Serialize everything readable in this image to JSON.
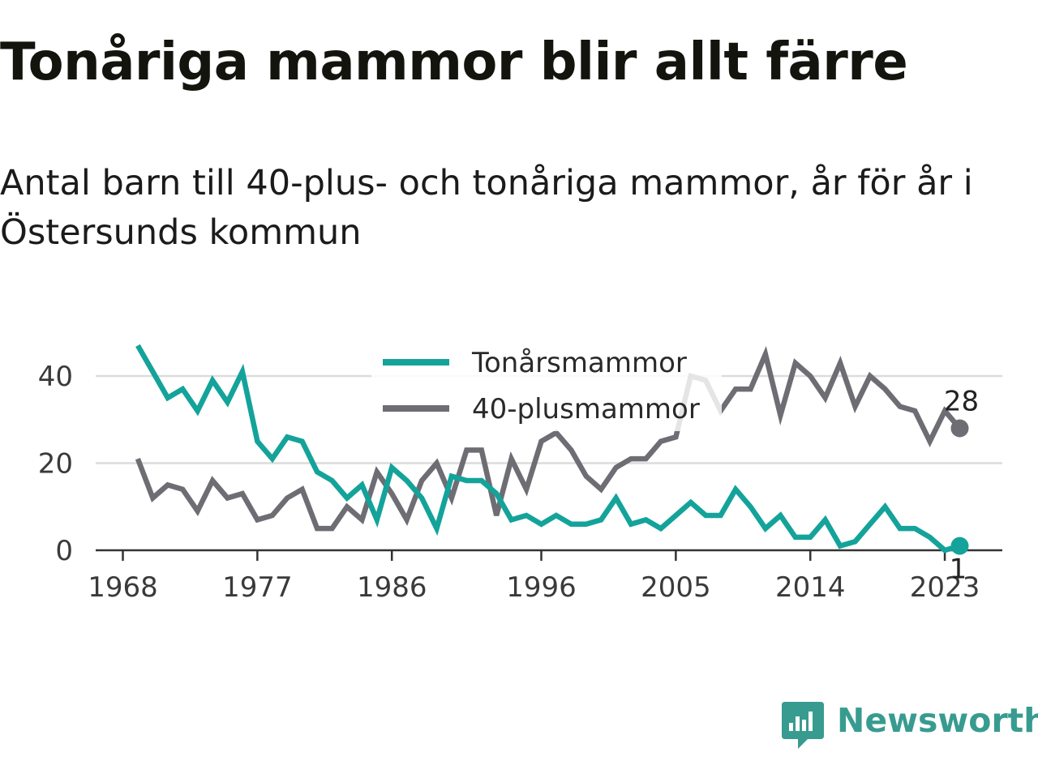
{
  "title": "Tonåriga mammor blir allt färre",
  "subtitle": "Antal barn till 40-plus- och tonåriga mammor, år för år i Östersunds kommun",
  "brand": {
    "name": "Newsworthy",
    "color": "#379c8f"
  },
  "chart_data": {
    "type": "line",
    "x": [
      1969,
      1970,
      1971,
      1972,
      1973,
      1974,
      1975,
      1976,
      1977,
      1978,
      1979,
      1980,
      1981,
      1982,
      1983,
      1984,
      1985,
      1986,
      1987,
      1988,
      1989,
      1990,
      1991,
      1992,
      1993,
      1994,
      1995,
      1996,
      1997,
      1998,
      1999,
      2000,
      2001,
      2002,
      2003,
      2004,
      2005,
      2006,
      2007,
      2008,
      2009,
      2010,
      2011,
      2012,
      2013,
      2014,
      2015,
      2016,
      2017,
      2018,
      2019,
      2020,
      2021,
      2022,
      2023,
      2024
    ],
    "xticks": [
      "1968",
      "1977",
      "1986",
      "1996",
      "2005",
      "2014",
      "2023"
    ],
    "yticks": [
      "0",
      "20",
      "40"
    ],
    "ylim": [
      0,
      50
    ],
    "grid": true,
    "legend_position": "top-center",
    "series": [
      {
        "name": "Tonårsmammor",
        "color": "#14a39a",
        "values": [
          47,
          41,
          35,
          37,
          32,
          39,
          34,
          41,
          25,
          21,
          26,
          25,
          18,
          16,
          12,
          15,
          7,
          19,
          16,
          12,
          5,
          17,
          16,
          16,
          13,
          7,
          8,
          6,
          8,
          6,
          6,
          7,
          12,
          6,
          7,
          5,
          8,
          11,
          8,
          8,
          14,
          10,
          5,
          8,
          3,
          3,
          7,
          1,
          2,
          6,
          10,
          5,
          5,
          3,
          0,
          1
        ],
        "end_label": "1"
      },
      {
        "name": "40-plusmammor",
        "color": "#6e6d74",
        "values": [
          21,
          12,
          15,
          14,
          9,
          16,
          12,
          13,
          7,
          8,
          12,
          14,
          5,
          5,
          10,
          7,
          18,
          13,
          7,
          16,
          20,
          12,
          23,
          23,
          8,
          21,
          14,
          25,
          27,
          23,
          17,
          14,
          19,
          21,
          21,
          25,
          26,
          40,
          39,
          32,
          37,
          37,
          45,
          31,
          43,
          40,
          35,
          43,
          33,
          40,
          37,
          33,
          32,
          25,
          32,
          28
        ],
        "end_label": "28"
      }
    ]
  }
}
